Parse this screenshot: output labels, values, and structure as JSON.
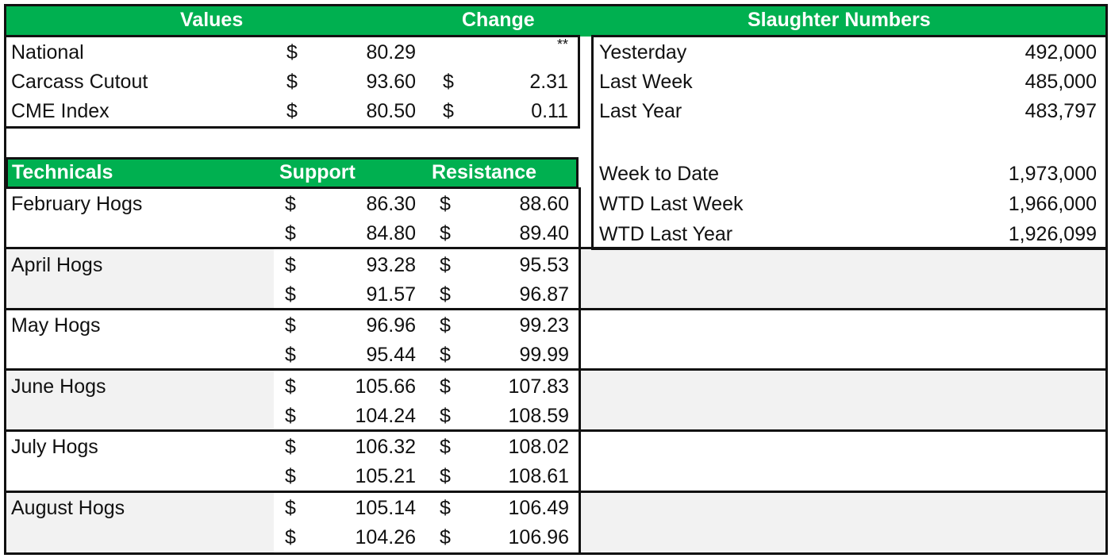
{
  "colors": {
    "header_green": "#00b050",
    "row_gray": "#f2f2f2"
  },
  "headers": {
    "values": "Values",
    "change": "Change",
    "slaughter": "Slaughter Numbers",
    "technicals": "Technicals",
    "support": "Support",
    "resistance": "Resistance"
  },
  "values_rows": [
    {
      "label": "National",
      "cur": "$",
      "value": "80.29",
      "change_cur": "",
      "change": "**"
    },
    {
      "label": "Carcass Cutout",
      "cur": "$",
      "value": "93.60",
      "change_cur": "$",
      "change": "2.31"
    },
    {
      "label": "CME Index",
      "cur": "$",
      "value": "80.50",
      "change_cur": "$",
      "change": "0.11"
    }
  ],
  "slaughter_rows": [
    {
      "label": "Yesterday",
      "value": "492,000"
    },
    {
      "label": "Last Week",
      "value": "485,000"
    },
    {
      "label": "Last Year",
      "value": "483,797"
    },
    {
      "label": "Week to Date",
      "value": "1,973,000"
    },
    {
      "label": "WTD Last Week",
      "value": "1,966,000"
    },
    {
      "label": "WTD Last Year",
      "value": "1,926,099"
    }
  ],
  "technicals": [
    {
      "label": "February Hogs",
      "levels": [
        {
          "support": "86.30",
          "resistance": "88.60"
        },
        {
          "support": "84.80",
          "resistance": "89.40"
        }
      ]
    },
    {
      "label": "April Hogs",
      "levels": [
        {
          "support": "93.28",
          "resistance": "95.53"
        },
        {
          "support": "91.57",
          "resistance": "96.87"
        }
      ]
    },
    {
      "label": "May Hogs",
      "levels": [
        {
          "support": "96.96",
          "resistance": "99.23"
        },
        {
          "support": "95.44",
          "resistance": "99.99"
        }
      ]
    },
    {
      "label": "June Hogs",
      "levels": [
        {
          "support": "105.66",
          "resistance": "107.83"
        },
        {
          "support": "104.24",
          "resistance": "108.59"
        }
      ]
    },
    {
      "label": "July Hogs",
      "levels": [
        {
          "support": "106.32",
          "resistance": "108.02"
        },
        {
          "support": "105.21",
          "resistance": "108.61"
        }
      ]
    },
    {
      "label": "August Hogs",
      "levels": [
        {
          "support": "105.14",
          "resistance": "106.49"
        },
        {
          "support": "104.26",
          "resistance": "106.96"
        }
      ]
    }
  ],
  "currency_symbol": "$"
}
